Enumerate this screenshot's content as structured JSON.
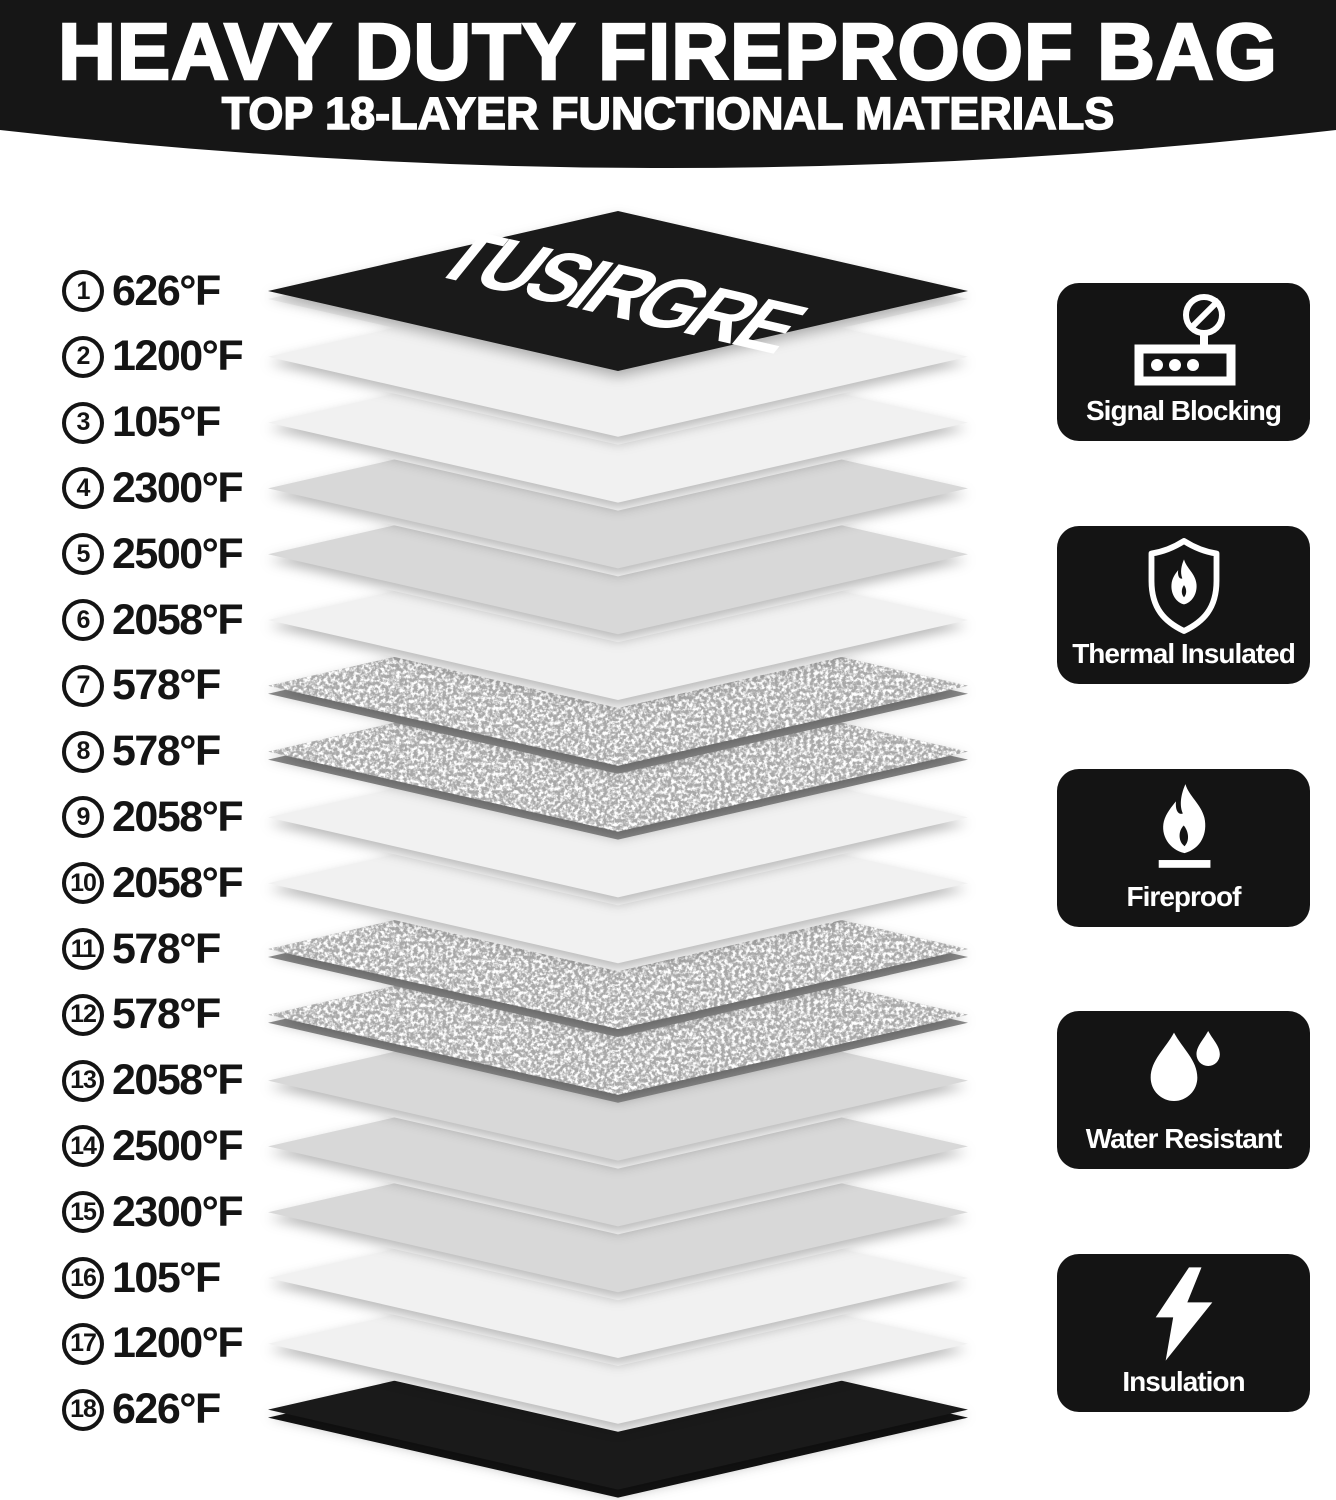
{
  "header": {
    "title": "HEAVY DUTY FIREPROOF BAG",
    "subtitle": "TOP 18-LAYER FUNCTIONAL MATERIALS"
  },
  "brand": "TUSIRGRE",
  "temperature_unit": "°F",
  "layers": [
    {
      "num": "1",
      "temp": "626",
      "type": "black"
    },
    {
      "num": "2",
      "temp": "1200",
      "type": "light"
    },
    {
      "num": "3",
      "temp": "105",
      "type": "light"
    },
    {
      "num": "4",
      "temp": "2300",
      "type": "gray"
    },
    {
      "num": "5",
      "temp": "2500",
      "type": "gray"
    },
    {
      "num": "6",
      "temp": "2058",
      "type": "light"
    },
    {
      "num": "7",
      "temp": "578",
      "type": "textured"
    },
    {
      "num": "8",
      "temp": "578",
      "type": "textured"
    },
    {
      "num": "9",
      "temp": "2058",
      "type": "light"
    },
    {
      "num": "10",
      "temp": "2058",
      "type": "light"
    },
    {
      "num": "11",
      "temp": "578",
      "type": "textured"
    },
    {
      "num": "12",
      "temp": "578",
      "type": "textured"
    },
    {
      "num": "13",
      "temp": "2058",
      "type": "gray"
    },
    {
      "num": "14",
      "temp": "2500",
      "type": "gray"
    },
    {
      "num": "15",
      "temp": "2300",
      "type": "gray"
    },
    {
      "num": "16",
      "temp": "105",
      "type": "light"
    },
    {
      "num": "17",
      "temp": "1200",
      "type": "light"
    },
    {
      "num": "18",
      "temp": "626",
      "type": "black"
    }
  ],
  "features": [
    {
      "label": "Signal Blocking",
      "icon": "router-no-signal-icon"
    },
    {
      "label": "Thermal Insulated",
      "icon": "shield-flame-icon"
    },
    {
      "label": "Fireproof",
      "icon": "flame-icon"
    },
    {
      "label": "Water Resistant",
      "icon": "water-drops-icon"
    },
    {
      "label": "Insulation",
      "icon": "lightning-bolt-icon"
    }
  ],
  "colors": {
    "banner": "#161616",
    "badge_bg": "#141414",
    "text_dark": "#141414",
    "face_black": "#1a1a1a",
    "face_light": "#f1f1f1",
    "face_gray": "#d8d8d8",
    "face_textured": "#a8a8a8"
  }
}
